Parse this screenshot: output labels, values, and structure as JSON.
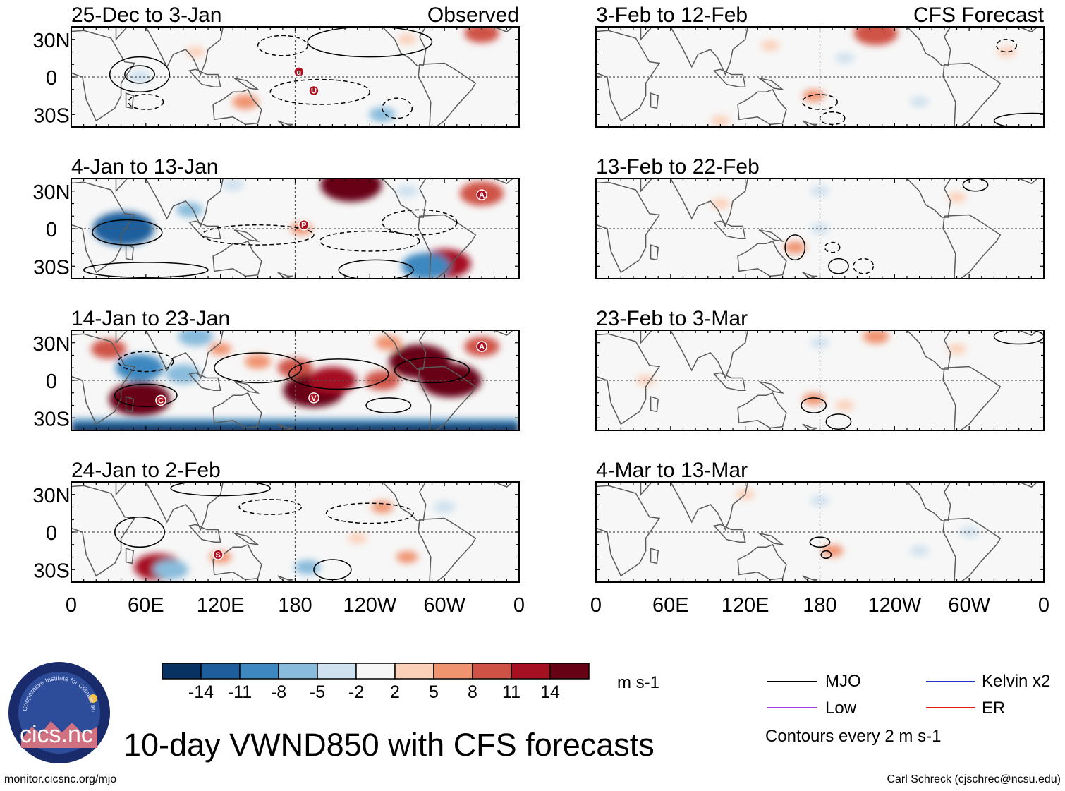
{
  "figure": {
    "title": "10-day VWND850 with CFS forecasts",
    "footer_left": "monitor.cicsnc.org/mjo",
    "footer_right": "Carl Schreck (cjschrec@ncsu.edu)",
    "logo_arc_text": "Cooperative Institute for Climate and Satellites",
    "logo_text": "cics.nc"
  },
  "chart_data": {
    "type": "heatmap",
    "variable": "VWND850",
    "units": "m s-1",
    "column_headers": {
      "left": "Observed",
      "right": "CFS Forecast"
    },
    "lon_ticks": [
      "0",
      "60E",
      "120E",
      "180",
      "120W",
      "60W",
      "0"
    ],
    "lon_values": [
      0,
      60,
      120,
      180,
      240,
      300,
      360
    ],
    "lat_ticks": [
      "30N",
      "0",
      "30S"
    ],
    "lat_values": [
      30,
      0,
      -30
    ],
    "lat_range": [
      -40,
      40
    ],
    "lon_range": [
      0,
      360
    ],
    "panels": [
      {
        "id": "obs1",
        "label": "25-Dec to 3-Jan",
        "column": "observed",
        "row": 0,
        "markers": [
          {
            "letter": "g",
            "lon": 183,
            "lat": 4
          },
          {
            "letter": "U",
            "lon": 195,
            "lat": -11
          }
        ],
        "blobs": [
          {
            "lon": 55,
            "lat": 0,
            "v": -5
          },
          {
            "lon": 140,
            "lat": -20,
            "v": 6
          },
          {
            "lon": 330,
            "lat": 35,
            "v": 8
          },
          {
            "lon": 270,
            "lat": 30,
            "v": 4
          },
          {
            "lon": 250,
            "lat": -30,
            "v": -6
          },
          {
            "lon": 100,
            "lat": 20,
            "v": 4
          }
        ],
        "contours": [
          {
            "lon": 55,
            "lat": 2,
            "rx": 24,
            "ry": 14,
            "style": "solid"
          },
          {
            "lon": 55,
            "lat": 2,
            "rx": 12,
            "ry": 7,
            "style": "solid"
          },
          {
            "lon": 240,
            "lat": 28,
            "rx": 50,
            "ry": 12,
            "style": "solid"
          },
          {
            "lon": 200,
            "lat": -12,
            "rx": 40,
            "ry": 10,
            "style": "dashed"
          },
          {
            "lon": 170,
            "lat": 25,
            "rx": 20,
            "ry": 8,
            "style": "dashed"
          },
          {
            "lon": 262,
            "lat": -25,
            "rx": 12,
            "ry": 8,
            "style": "dashed"
          },
          {
            "lon": 60,
            "lat": -20,
            "rx": 14,
            "ry": 6,
            "style": "dashed"
          }
        ]
      },
      {
        "id": "obs2",
        "label": "4-Jan to 13-Jan",
        "column": "observed",
        "row": 1,
        "markers": [
          {
            "letter": "P",
            "lon": 187,
            "lat": 3
          },
          {
            "letter": "A",
            "lon": 330,
            "lat": 27
          }
        ],
        "blobs": [
          {
            "lon": 42,
            "lat": 0,
            "v": -14
          },
          {
            "lon": 225,
            "lat": 35,
            "v": 14
          },
          {
            "lon": 330,
            "lat": 28,
            "v": 10
          },
          {
            "lon": 300,
            "lat": -28,
            "v": 12
          },
          {
            "lon": 285,
            "lat": -30,
            "v": -11
          },
          {
            "lon": 95,
            "lat": 15,
            "v": -6
          },
          {
            "lon": 130,
            "lat": 35,
            "v": -5
          },
          {
            "lon": 185,
            "lat": 0,
            "v": 5
          },
          {
            "lon": 270,
            "lat": 30,
            "v": -5
          }
        ],
        "contours": [
          {
            "lon": 45,
            "lat": -3,
            "rx": 28,
            "ry": 10,
            "style": "solid"
          },
          {
            "lon": 150,
            "lat": -5,
            "rx": 45,
            "ry": 8,
            "style": "dashed"
          },
          {
            "lon": 240,
            "lat": -10,
            "rx": 40,
            "ry": 8,
            "style": "dashed"
          },
          {
            "lon": 245,
            "lat": -33,
            "rx": 30,
            "ry": 8,
            "style": "solid"
          },
          {
            "lon": 280,
            "lat": 5,
            "rx": 30,
            "ry": 10,
            "style": "dashed"
          },
          {
            "lon": 60,
            "lat": -33,
            "rx": 50,
            "ry": 6,
            "style": "solid"
          }
        ]
      },
      {
        "id": "obs3",
        "label": "14-Jan to 23-Jan",
        "column": "observed",
        "row": 2,
        "markers": [
          {
            "letter": "A",
            "lon": 330,
            "lat": 27
          },
          {
            "letter": "C",
            "lon": 72,
            "lat": -16
          },
          {
            "letter": "V",
            "lon": 195,
            "lat": -14
          }
        ],
        "blobs": [
          {
            "lon": 55,
            "lat": -15,
            "v": 14
          },
          {
            "lon": 30,
            "lat": 25,
            "v": 8
          },
          {
            "lon": 55,
            "lat": 10,
            "v": -11
          },
          {
            "lon": 90,
            "lat": 5,
            "v": -8
          },
          {
            "lon": 180,
            "lat": 10,
            "v": 8
          },
          {
            "lon": 150,
            "lat": 15,
            "v": 6
          },
          {
            "lon": 195,
            "lat": -8,
            "v": 14
          },
          {
            "lon": 210,
            "lat": 0,
            "v": 11
          },
          {
            "lon": 250,
            "lat": 0,
            "v": 8
          },
          {
            "lon": 280,
            "lat": 15,
            "v": 14
          },
          {
            "lon": 305,
            "lat": 0,
            "v": 14
          },
          {
            "lon": 330,
            "lat": 27,
            "v": 8
          },
          {
            "lon": 120,
            "lat": 25,
            "v": 5
          },
          {
            "lon": 100,
            "lat": 35,
            "v": -8
          },
          {
            "lon": 255,
            "lat": 30,
            "v": 6
          }
        ],
        "contours": [
          {
            "lon": 60,
            "lat": -12,
            "rx": 25,
            "ry": 9,
            "style": "solid"
          },
          {
            "lon": 150,
            "lat": 10,
            "rx": 35,
            "ry": 12,
            "style": "solid"
          },
          {
            "lon": 215,
            "lat": 5,
            "rx": 40,
            "ry": 12,
            "style": "solid"
          },
          {
            "lon": 290,
            "lat": 8,
            "rx": 30,
            "ry": 10,
            "style": "solid"
          },
          {
            "lon": 60,
            "lat": 15,
            "rx": 22,
            "ry": 8,
            "style": "dashed"
          },
          {
            "lon": 255,
            "lat": -20,
            "rx": 18,
            "ry": 6,
            "style": "solid"
          }
        ],
        "southern_band_negative": true
      },
      {
        "id": "obs4",
        "label": "24-Jan to 2-Feb",
        "column": "observed",
        "row": 3,
        "markers": [
          {
            "letter": "S",
            "lon": 118,
            "lat": -18
          }
        ],
        "blobs": [
          {
            "lon": 70,
            "lat": -28,
            "v": 11
          },
          {
            "lon": 80,
            "lat": -30,
            "v": -8
          },
          {
            "lon": 190,
            "lat": -28,
            "v": -6
          },
          {
            "lon": 120,
            "lat": -20,
            "v": 5
          },
          {
            "lon": 250,
            "lat": 20,
            "v": 5
          },
          {
            "lon": 270,
            "lat": -20,
            "v": 5
          },
          {
            "lon": 300,
            "lat": 20,
            "v": -5
          },
          {
            "lon": 230,
            "lat": -5,
            "v": 4
          }
        ],
        "contours": [
          {
            "lon": 55,
            "lat": 0,
            "rx": 20,
            "ry": 12,
            "style": "solid"
          },
          {
            "lon": 210,
            "lat": -30,
            "rx": 15,
            "ry": 8,
            "style": "solid"
          },
          {
            "lon": 240,
            "lat": 15,
            "rx": 35,
            "ry": 8,
            "style": "dashed"
          },
          {
            "lon": 160,
            "lat": 20,
            "rx": 25,
            "ry": 6,
            "style": "dashed"
          },
          {
            "lon": 120,
            "lat": 35,
            "rx": 40,
            "ry": 6,
            "style": "solid"
          }
        ]
      },
      {
        "id": "fc1",
        "label": "3-Feb to 12-Feb",
        "column": "forecast",
        "row": 0,
        "markers": [],
        "blobs": [
          {
            "lon": 225,
            "lat": 35,
            "v": 10
          },
          {
            "lon": 175,
            "lat": -15,
            "v": 5
          },
          {
            "lon": 200,
            "lat": 15,
            "v": -4
          },
          {
            "lon": 140,
            "lat": 25,
            "v": 4
          },
          {
            "lon": 330,
            "lat": 20,
            "v": 4
          },
          {
            "lon": 260,
            "lat": -20,
            "v": -4
          },
          {
            "lon": 100,
            "lat": -35,
            "v": 3
          }
        ],
        "contours": [
          {
            "lon": 180,
            "lat": -20,
            "rx": 14,
            "ry": 6,
            "style": "dashed"
          },
          {
            "lon": 330,
            "lat": 25,
            "rx": 8,
            "ry": 5,
            "style": "dashed"
          },
          {
            "lon": 350,
            "lat": -35,
            "rx": 30,
            "ry": 6,
            "style": "solid"
          },
          {
            "lon": 190,
            "lat": -33,
            "rx": 10,
            "ry": 5,
            "style": "dashed"
          }
        ]
      },
      {
        "id": "fc2",
        "label": "13-Feb to 22-Feb",
        "column": "forecast",
        "row": 1,
        "markers": [],
        "blobs": [
          {
            "lon": 160,
            "lat": -15,
            "v": 5
          },
          {
            "lon": 180,
            "lat": 0,
            "v": -4
          },
          {
            "lon": 290,
            "lat": 25,
            "v": 4
          },
          {
            "lon": 180,
            "lat": 30,
            "v": -3
          },
          {
            "lon": 100,
            "lat": 20,
            "v": 3
          }
        ],
        "contours": [
          {
            "lon": 160,
            "lat": -15,
            "rx": 8,
            "ry": 10,
            "style": "solid"
          },
          {
            "lon": 190,
            "lat": -15,
            "rx": 6,
            "ry": 4,
            "style": "dashed"
          },
          {
            "lon": 215,
            "lat": -30,
            "rx": 8,
            "ry": 6,
            "style": "dashed"
          },
          {
            "lon": 195,
            "lat": -30,
            "rx": 8,
            "ry": 6,
            "style": "solid"
          },
          {
            "lon": 305,
            "lat": 35,
            "rx": 10,
            "ry": 5,
            "style": "solid"
          }
        ]
      },
      {
        "id": "fc3",
        "label": "23-Feb to 3-Mar",
        "column": "forecast",
        "row": 2,
        "markers": [],
        "blobs": [
          {
            "lon": 180,
            "lat": 30,
            "v": -4
          },
          {
            "lon": 225,
            "lat": 35,
            "v": 6
          },
          {
            "lon": 175,
            "lat": -15,
            "v": 5
          },
          {
            "lon": 200,
            "lat": -20,
            "v": 4
          },
          {
            "lon": 290,
            "lat": 25,
            "v": 3
          },
          {
            "lon": 40,
            "lat": 0,
            "v": 3
          }
        ],
        "contours": [
          {
            "lon": 175,
            "lat": -20,
            "rx": 10,
            "ry": 6,
            "style": "solid"
          },
          {
            "lon": 195,
            "lat": -33,
            "rx": 10,
            "ry": 6,
            "style": "solid"
          },
          {
            "lon": 340,
            "lat": 35,
            "rx": 20,
            "ry": 6,
            "style": "solid"
          }
        ]
      },
      {
        "id": "fc4",
        "label": "4-Mar to 13-Mar",
        "column": "forecast",
        "row": 3,
        "markers": [],
        "blobs": [
          {
            "lon": 190,
            "lat": -15,
            "v": 5
          },
          {
            "lon": 180,
            "lat": 25,
            "v": -3
          },
          {
            "lon": 260,
            "lat": -15,
            "v": -3
          },
          {
            "lon": 120,
            "lat": 30,
            "v": 3
          },
          {
            "lon": 300,
            "lat": 0,
            "v": -3
          }
        ],
        "contours": [
          {
            "lon": 180,
            "lat": -8,
            "rx": 8,
            "ry": 4,
            "style": "solid"
          },
          {
            "lon": 185,
            "lat": -18,
            "rx": 4,
            "ry": 3,
            "style": "solid"
          }
        ]
      }
    ],
    "colorbar": {
      "levels": [
        "-14",
        "-11",
        "-8",
        "-5",
        "-2",
        "2",
        "5",
        "8",
        "11",
        "14"
      ],
      "colors": [
        "#083261",
        "#1f5e9c",
        "#3d88c0",
        "#89bcdc",
        "#cfe1ef",
        "#f7f7f7",
        "#fbd0b9",
        "#f0936f",
        "#cf5246",
        "#a51022",
        "#670114"
      ]
    },
    "legend": [
      {
        "name": "MJO",
        "color": "#000000"
      },
      {
        "name": "Kelvin x2",
        "color": "#2030c8"
      },
      {
        "name": "Low",
        "color": "#a040e0"
      },
      {
        "name": "ER",
        "color": "#e02010"
      }
    ],
    "contour_note": "Contours every 2 m s-1"
  }
}
